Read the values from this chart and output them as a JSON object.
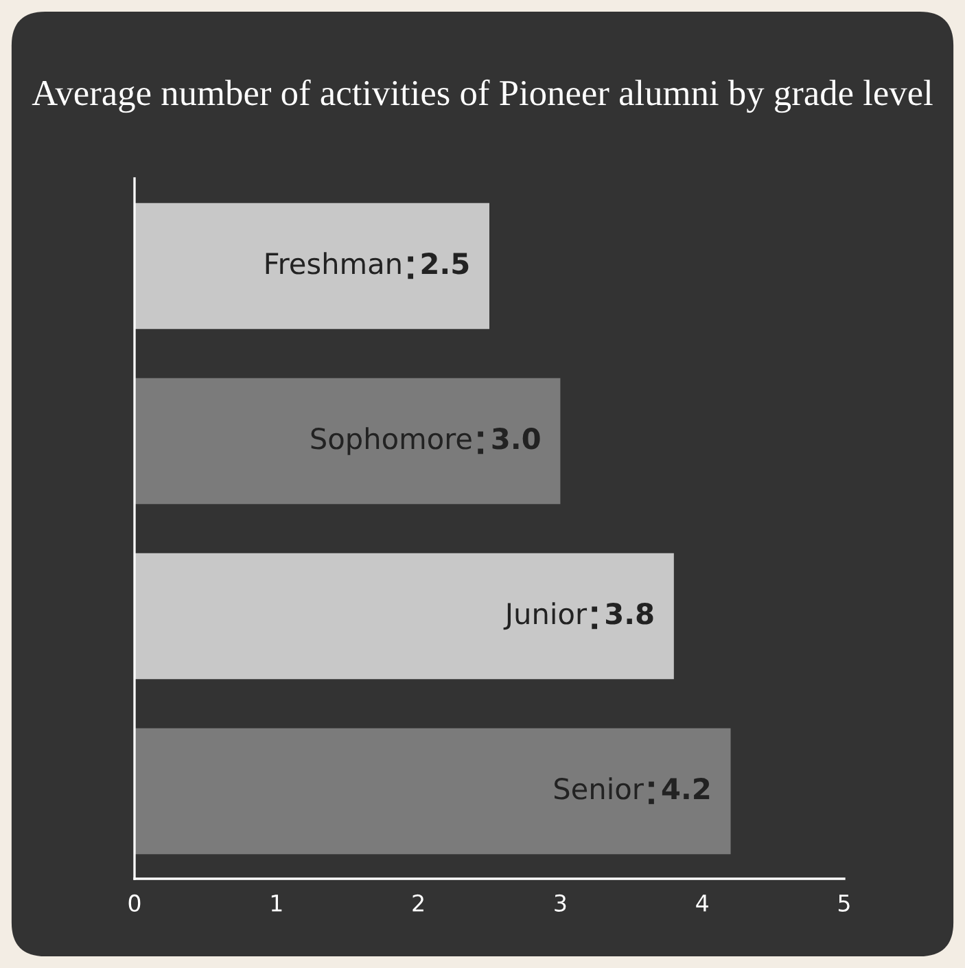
{
  "chart_data": {
    "type": "bar",
    "orientation": "horizontal",
    "title": "Average number of activities of Pioneer alumni by grade level",
    "categories": [
      "Freshman",
      "Sophomore",
      "Junior",
      "Senior"
    ],
    "values": [
      2.5,
      3.0,
      3.8,
      4.2
    ],
    "value_labels": [
      "2.5",
      "3.0",
      "3.8",
      "4.2"
    ],
    "colors": [
      "#c8c8c8",
      "#7b7b7b",
      "#c8c8c8",
      "#7b7b7b"
    ],
    "xlim": [
      0,
      5
    ],
    "xticks": [
      0,
      1,
      2,
      3,
      4,
      5
    ],
    "tick_labels": "x",
    "grid": false,
    "legend": false
  }
}
